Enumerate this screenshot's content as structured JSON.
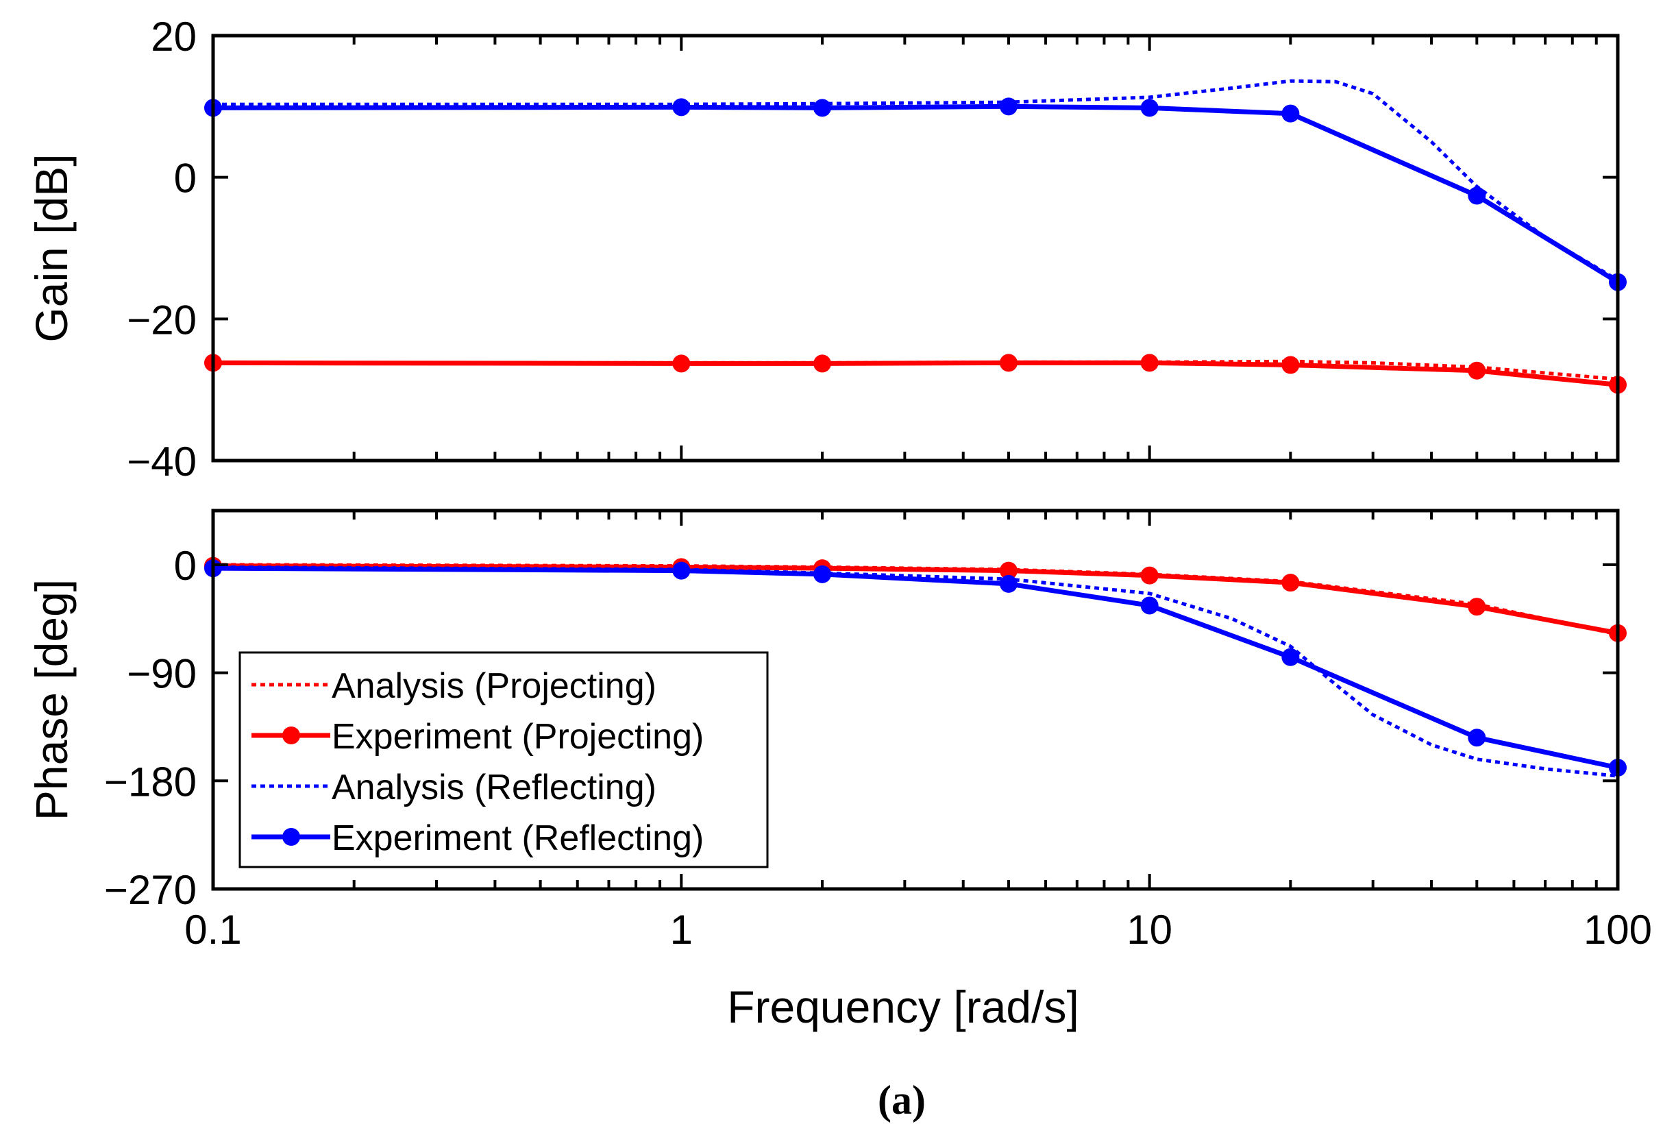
{
  "chart_data": [
    {
      "type": "line",
      "panel": "gain",
      "xlabel": "",
      "ylabel": "Gain [dB]",
      "xscale": "log",
      "xlim": [
        0.1,
        100
      ],
      "ylim": [
        -40,
        20
      ],
      "yticks": [
        20,
        0,
        -20,
        -40
      ],
      "ytick_labels": [
        "20",
        "0",
        "−20",
        "−40"
      ],
      "grid": false,
      "series": [
        {
          "name": "Analysis (Projecting)",
          "color": "#ff0000",
          "style": "dotted",
          "x": [
            0.1,
            1,
            2,
            5,
            10,
            20,
            30,
            50,
            100
          ],
          "y": [
            -26.2,
            -26.2,
            -26.2,
            -26.1,
            -26.1,
            -26.0,
            -26.2,
            -26.8,
            -28.5
          ]
        },
        {
          "name": "Experiment (Projecting)",
          "color": "#ff0000",
          "style": "solid-marker",
          "x": [
            0.1,
            1,
            2,
            5,
            10,
            20,
            50,
            100
          ],
          "y": [
            -26.2,
            -26.3,
            -26.3,
            -26.2,
            -26.2,
            -26.5,
            -27.3,
            -29.3
          ]
        },
        {
          "name": "Analysis (Reflecting)",
          "color": "#0000ff",
          "style": "dotted",
          "x": [
            0.1,
            1,
            2,
            5,
            10,
            15,
            20,
            25,
            30,
            40,
            50,
            70,
            100
          ],
          "y": [
            10.3,
            10.3,
            10.4,
            10.6,
            11.3,
            12.6,
            13.6,
            13.5,
            11.8,
            5.0,
            -1.3,
            -8.5,
            -14.5
          ]
        },
        {
          "name": "Experiment (Reflecting)",
          "color": "#0000ff",
          "style": "solid-marker",
          "x": [
            0.1,
            1,
            2,
            5,
            10,
            20,
            50,
            100
          ],
          "y": [
            9.8,
            9.9,
            9.8,
            10.0,
            9.8,
            9.0,
            -2.6,
            -14.8
          ]
        }
      ]
    },
    {
      "type": "line",
      "panel": "phase",
      "xlabel": "Frequency [rad/s]",
      "ylabel": "Phase [deg]",
      "xscale": "log",
      "xlim": [
        0.1,
        100
      ],
      "ylim": [
        -270,
        45
      ],
      "yticks": [
        0,
        -90,
        -180,
        -270
      ],
      "ytick_labels": [
        "0",
        "−90",
        "−180",
        "−270"
      ],
      "xticks": [
        0.1,
        1,
        10,
        100
      ],
      "xtick_labels": [
        "0.1",
        "1",
        "10",
        "100"
      ],
      "grid": false,
      "legend": "lower-left",
      "series": [
        {
          "name": "Analysis (Projecting)",
          "color": "#ff0000",
          "style": "dotted",
          "x": [
            0.1,
            1,
            2,
            5,
            10,
            20,
            50,
            100
          ],
          "y": [
            0,
            -1,
            -2,
            -4,
            -8,
            -14,
            -33,
            -58
          ]
        },
        {
          "name": "Experiment (Projecting)",
          "color": "#ff0000",
          "style": "solid-marker",
          "x": [
            0.1,
            1,
            2,
            5,
            10,
            20,
            50,
            100
          ],
          "y": [
            -1,
            -2,
            -3,
            -5,
            -9,
            -15,
            -35,
            -57
          ]
        },
        {
          "name": "Analysis (Reflecting)",
          "color": "#0000ff",
          "style": "dotted",
          "x": [
            0.1,
            1,
            2,
            5,
            10,
            15,
            20,
            25,
            30,
            40,
            50,
            70,
            100
          ],
          "y": [
            -2,
            -4,
            -7,
            -12,
            -24,
            -45,
            -68,
            -100,
            -125,
            -150,
            -162,
            -170,
            -176
          ]
        },
        {
          "name": "Experiment (Reflecting)",
          "color": "#0000ff",
          "style": "solid-marker",
          "x": [
            0.1,
            1,
            2,
            5,
            10,
            20,
            50,
            100
          ],
          "y": [
            -3,
            -5,
            -8,
            -16,
            -34,
            -77,
            -144,
            -169
          ]
        }
      ]
    }
  ],
  "legend": {
    "entries": [
      {
        "label": "Analysis (Projecting)",
        "color": "#ff0000",
        "style": "dotted"
      },
      {
        "label": "Experiment (Projecting)",
        "color": "#ff0000",
        "style": "solid-marker"
      },
      {
        "label": "Analysis (Reflecting)",
        "color": "#0000ff",
        "style": "dotted"
      },
      {
        "label": "Experiment (Reflecting)",
        "color": "#0000ff",
        "style": "solid-marker"
      }
    ]
  },
  "caption": "(a)"
}
